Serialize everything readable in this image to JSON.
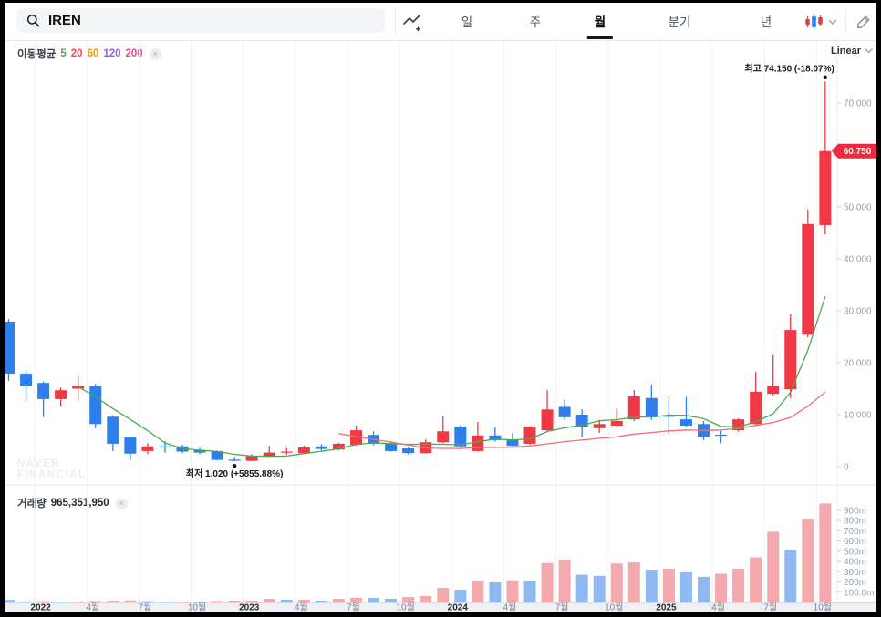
{
  "topbar": {
    "search": {
      "value": "IREN"
    },
    "tabs": [
      {
        "label": "일",
        "active": false
      },
      {
        "label": "주",
        "active": false
      },
      {
        "label": "월",
        "active": true
      },
      {
        "label": "분기",
        "active": false
      },
      {
        "label": "년",
        "active": false
      }
    ]
  },
  "price_pane": {
    "ma_label": "이동평균",
    "ma_periods": [
      {
        "label": "5",
        "color": "#4aaa50"
      },
      {
        "label": "20",
        "color": "#f04452"
      },
      {
        "label": "60",
        "color": "#f59b00"
      },
      {
        "label": "120",
        "color": "#8f62e8"
      },
      {
        "label": "200",
        "color": "#ec4899"
      }
    ],
    "scale_selector": "Linear",
    "watermark_lines": [
      "NAVER",
      "FINANCIAL"
    ],
    "y_ticks": [
      {
        "value": 70,
        "label": "70.000"
      },
      {
        "value": 50,
        "label": "50.000"
      },
      {
        "value": 40,
        "label": "40.000"
      },
      {
        "value": 30,
        "label": "30.000"
      },
      {
        "value": 20,
        "label": "20.000"
      },
      {
        "value": 10,
        "label": "10.000"
      },
      {
        "value": 0,
        "label": "0"
      }
    ]
  },
  "volume_pane": {
    "label": "거래량",
    "value": "965,351,950",
    "y_ticks": [
      {
        "value": 900,
        "label": "900m"
      },
      {
        "value": 800,
        "label": "800m"
      },
      {
        "value": 700,
        "label": "700m"
      },
      {
        "value": 600,
        "label": "600m"
      },
      {
        "value": 500,
        "label": "500m"
      },
      {
        "value": 400,
        "label": "400m"
      },
      {
        "value": 300,
        "label": "300m"
      },
      {
        "value": 200,
        "label": "200m"
      },
      {
        "value": 100,
        "label": "100.0m"
      }
    ]
  },
  "x_axis": {
    "month_suffix": "월"
  },
  "chart_data": {
    "type": "candlestick",
    "symbol": "IREN",
    "interval": "월",
    "scale": "Linear",
    "start_month": "2021-11",
    "high_marker": {
      "label": "최고",
      "text": "74.150 (-18.07%)",
      "price": 74.15,
      "index": 47
    },
    "low_marker": {
      "label": "최저",
      "text": "1.020 (+5855.88%)",
      "price": 1.02,
      "index": 13
    },
    "price_tag": {
      "text": "60.750",
      "price": 60.75,
      "color": "#f0293e"
    },
    "candle_up_color": "#f13845",
    "candle_down_color": "#2e7fec",
    "volume_up_color": "#f3a9ad",
    "volume_down_color": "#90b9f1",
    "ma_lines": [
      {
        "period": 5,
        "color": "#4aaa50"
      },
      {
        "period": 20,
        "color": "#ef7076"
      }
    ],
    "candles": [
      [
        27.9,
        28.4,
        16.5,
        17.9
      ],
      [
        17.9,
        18.6,
        12.6,
        15.6
      ],
      [
        16.1,
        16.4,
        9.5,
        13.0
      ],
      [
        13.0,
        15.2,
        11.6,
        14.7
      ],
      [
        15.0,
        17.5,
        12.6,
        15.6
      ],
      [
        15.6,
        15.9,
        7.4,
        8.2
      ],
      [
        9.6,
        9.9,
        3.0,
        4.4
      ],
      [
        5.6,
        5.8,
        1.3,
        2.5
      ],
      [
        3.0,
        4.5,
        2.4,
        3.9
      ],
      [
        3.9,
        4.9,
        2.7,
        3.8
      ],
      [
        3.9,
        4.2,
        2.6,
        2.9
      ],
      [
        3.2,
        3.6,
        2.4,
        2.7
      ],
      [
        3.0,
        3.1,
        1.2,
        1.3
      ],
      [
        1.35,
        1.9,
        1.02,
        1.15
      ],
      [
        1.1,
        2.4,
        1.05,
        2.1
      ],
      [
        2.1,
        4.0,
        1.9,
        2.7
      ],
      [
        2.7,
        3.6,
        2.3,
        2.9
      ],
      [
        2.6,
        4.0,
        2.5,
        3.7
      ],
      [
        3.9,
        4.3,
        3.1,
        3.4
      ],
      [
        3.3,
        4.6,
        3.1,
        4.4
      ],
      [
        4.2,
        7.9,
        4.0,
        7.0
      ],
      [
        6.1,
        6.8,
        4.1,
        4.4
      ],
      [
        4.4,
        4.9,
        2.9,
        3.0
      ],
      [
        3.5,
        3.8,
        2.4,
        2.6
      ],
      [
        2.6,
        5.2,
        2.5,
        4.7
      ],
      [
        4.7,
        9.7,
        4.5,
        6.8
      ],
      [
        7.7,
        8.0,
        3.7,
        3.9
      ],
      [
        3.0,
        8.6,
        2.9,
        6.0
      ],
      [
        6.0,
        7.6,
        4.8,
        5.1
      ],
      [
        5.1,
        6.5,
        3.9,
        4.0
      ],
      [
        4.4,
        7.8,
        4.2,
        7.7
      ],
      [
        7.0,
        14.7,
        6.8,
        11.0
      ],
      [
        11.5,
        12.9,
        9.0,
        9.5
      ],
      [
        10.0,
        11.0,
        5.6,
        7.7
      ],
      [
        7.4,
        9.0,
        6.5,
        8.2
      ],
      [
        7.9,
        11.2,
        7.5,
        8.8
      ],
      [
        9.1,
        14.7,
        8.8,
        13.5
      ],
      [
        13.2,
        15.8,
        9.0,
        9.5
      ],
      [
        9.8,
        13.5,
        6.1,
        9.6
      ],
      [
        9.1,
        13.4,
        7.6,
        7.9
      ],
      [
        8.2,
        8.8,
        5.1,
        5.6
      ],
      [
        6.15,
        6.9,
        4.5,
        6.05
      ],
      [
        7.0,
        9.3,
        6.7,
        9.1
      ],
      [
        8.2,
        18.2,
        8.0,
        14.4
      ],
      [
        14.0,
        21.6,
        13.7,
        15.6
      ],
      [
        14.9,
        29.3,
        13.2,
        26.3
      ],
      [
        25.4,
        49.5,
        24.9,
        46.7
      ],
      [
        46.5,
        74.15,
        44.7,
        60.75
      ]
    ],
    "volumes_millions": [
      25,
      10,
      12,
      8,
      10,
      15,
      18,
      20,
      12,
      8,
      8,
      6,
      15,
      18,
      18,
      35,
      27,
      27,
      18,
      35,
      45,
      44,
      36,
      53,
      62,
      142,
      124,
      213,
      196,
      215,
      210,
      384,
      417,
      270,
      260,
      380,
      390,
      320,
      330,
      295,
      250,
      280,
      330,
      440,
      690,
      510,
      810,
      965
    ]
  }
}
